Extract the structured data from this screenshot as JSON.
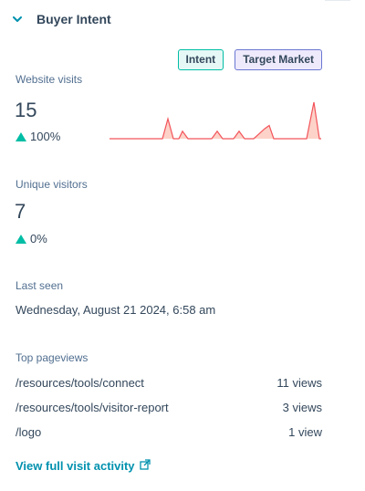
{
  "section": {
    "title": "Buyer Intent",
    "tags": [
      "Intent",
      "Target Market"
    ]
  },
  "website_visits": {
    "label": "Website visits",
    "value": "15",
    "change": "100%",
    "sparkline": [
      0,
      0,
      0,
      0,
      0,
      0,
      0,
      0,
      0,
      0,
      0,
      0,
      0,
      0,
      0,
      0,
      0,
      0,
      0,
      0,
      0,
      0,
      0,
      0,
      0,
      0,
      0,
      0,
      0,
      0,
      0,
      0,
      0,
      0,
      0,
      0,
      0,
      0,
      0,
      0,
      0,
      0,
      0,
      0,
      0,
      0,
      0,
      0,
      0,
      0,
      0,
      0,
      0,
      0,
      0,
      0,
      0,
      0,
      0,
      0,
      0,
      0,
      0,
      0,
      0,
      0,
      0,
      0,
      0,
      0,
      0,
      0,
      0,
      0,
      0,
      0,
      0,
      0,
      0,
      0,
      0,
      0,
      0,
      0,
      0,
      0,
      0,
      0,
      0,
      0,
      0,
      0,
      0,
      0,
      0,
      0,
      0,
      0,
      0,
      0
    ]
  },
  "unique_visitors": {
    "label": "Unique visitors",
    "value": "7",
    "change": "0%"
  },
  "last_seen": {
    "label": "Last seen",
    "value": "Wednesday, August 21 2024, 6:58 am"
  },
  "top_pageviews": {
    "label": "Top pageviews",
    "rows": [
      {
        "path": "/resources/tools/connect",
        "views": "11 views"
      },
      {
        "path": "/resources/tools/visitor-report",
        "views": "3 views"
      },
      {
        "path": "/logo",
        "views": "1 view"
      }
    ]
  },
  "link": {
    "label": "View full visit activity",
    "icon": "external-link-icon"
  },
  "colors": {
    "accent_teal": "#00bda5",
    "link": "#0091ae",
    "spark_line": "#f2545b",
    "spark_fill": "#fdd2c8"
  }
}
